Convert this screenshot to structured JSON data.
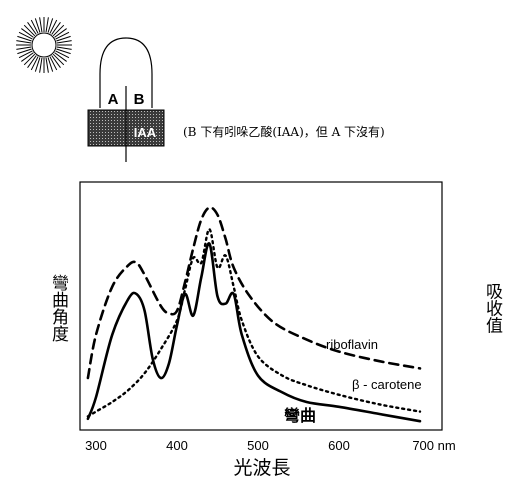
{
  "top_diagram": {
    "label_a": "A",
    "label_b": "B",
    "block_label": "IAA",
    "caption": "(B 下有吲哚乙酸(IAA)，但 A 下沒有)"
  },
  "chart_data": {
    "type": "line",
    "xlabel": "光波長",
    "ylabel_left": "彎曲角度",
    "ylabel_right": "吸收值",
    "x_ticks": [
      "300",
      "400",
      "500",
      "600",
      "700 nm"
    ],
    "xlim": [
      290,
      710
    ],
    "ylim": [
      0,
      1
    ],
    "series": [
      {
        "name": "riboflavin",
        "style": "dashed",
        "x": [
          290,
          300,
          320,
          340,
          350,
          360,
          380,
          390,
          400,
          410,
          420,
          430,
          440,
          450,
          460,
          470,
          490,
          520,
          560,
          600,
          650,
          700
        ],
        "y": [
          0.2,
          0.38,
          0.58,
          0.67,
          0.68,
          0.63,
          0.5,
          0.47,
          0.48,
          0.6,
          0.74,
          0.86,
          0.91,
          0.88,
          0.78,
          0.66,
          0.54,
          0.43,
          0.36,
          0.31,
          0.27,
          0.24
        ]
      },
      {
        "name": "β - carotene",
        "style": "dotted",
        "x": [
          290,
          300,
          320,
          340,
          360,
          380,
          400,
          410,
          420,
          430,
          440,
          450,
          460,
          470,
          480,
          500,
          530,
          560,
          600,
          650,
          700
        ],
        "y": [
          0.04,
          0.06,
          0.1,
          0.15,
          0.22,
          0.32,
          0.44,
          0.57,
          0.7,
          0.68,
          0.82,
          0.66,
          0.71,
          0.58,
          0.44,
          0.29,
          0.21,
          0.17,
          0.13,
          0.09,
          0.06
        ]
      },
      {
        "name": "彎曲",
        "style": "solid",
        "x": [
          290,
          300,
          320,
          340,
          350,
          360,
          370,
          380,
          390,
          400,
          410,
          420,
          430,
          440,
          450,
          460,
          470,
          480,
          500,
          530,
          560,
          600,
          650,
          700
        ],
        "y": [
          0.03,
          0.12,
          0.38,
          0.53,
          0.55,
          0.48,
          0.28,
          0.2,
          0.26,
          0.42,
          0.55,
          0.46,
          0.62,
          0.76,
          0.54,
          0.51,
          0.55,
          0.38,
          0.21,
          0.14,
          0.1,
          0.08,
          0.05,
          0.02
        ]
      }
    ]
  }
}
